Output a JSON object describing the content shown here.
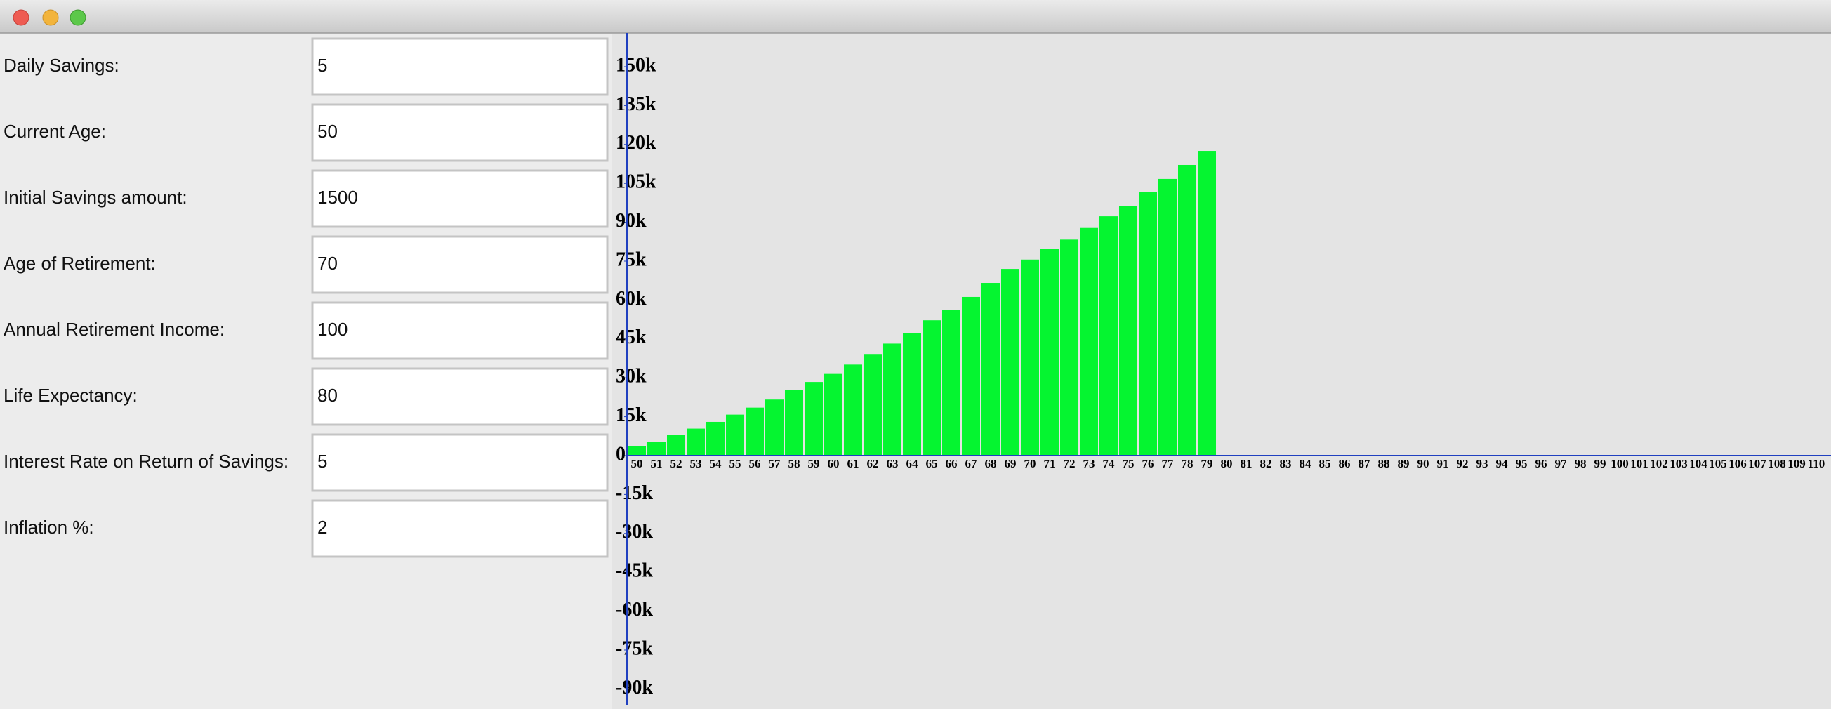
{
  "form": {
    "fields": [
      {
        "label": "Daily Savings:",
        "value": "5"
      },
      {
        "label": "Current Age:",
        "value": "50"
      },
      {
        "label": "Initial Savings amount:",
        "value": "1500"
      },
      {
        "label": "Age of Retirement:",
        "value": "70"
      },
      {
        "label": "Annual Retirement Income:",
        "value": "100"
      },
      {
        "label": "Life Expectancy:",
        "value": "80"
      },
      {
        "label": "Interest Rate on Return of Savings:",
        "value": "5"
      },
      {
        "label": "Inflation %:",
        "value": "2"
      }
    ]
  },
  "chart_data": {
    "type": "bar",
    "color": "#05f530",
    "categories": [
      "50",
      "51",
      "52",
      "53",
      "54",
      "55",
      "56",
      "57",
      "58",
      "59",
      "60",
      "61",
      "62",
      "63",
      "64",
      "65",
      "66",
      "67",
      "68",
      "69",
      "70",
      "71",
      "72",
      "73",
      "74",
      "75",
      "76",
      "77",
      "78",
      "79",
      "80",
      "81",
      "82",
      "83",
      "84",
      "85",
      "86",
      "87",
      "88",
      "89",
      "90",
      "91",
      "92",
      "93",
      "94",
      "95",
      "96",
      "97",
      "98",
      "99",
      "100",
      "101",
      "102",
      "103",
      "104",
      "105",
      "106",
      "107",
      "108",
      "109",
      "110"
    ],
    "values": [
      3600,
      5400,
      8100,
      10400,
      13000,
      15800,
      18500,
      21600,
      25200,
      28400,
      31500,
      35100,
      39200,
      43200,
      47300,
      52200,
      56300,
      61200,
      66600,
      72000,
      75600,
      79700,
      83300,
      87800,
      92300,
      96300,
      101700,
      106700,
      112100,
      117500,
      null,
      null,
      null,
      null,
      null,
      null,
      null,
      null,
      null,
      null,
      null,
      null,
      null,
      null,
      null,
      null,
      null,
      null,
      null,
      null,
      null,
      null,
      null,
      null,
      null,
      null,
      null,
      null,
      null,
      null,
      null
    ],
    "ylim": [
      -96400,
      163000
    ],
    "yticks": [
      {
        "value": 150000,
        "label": "150k"
      },
      {
        "value": 135000,
        "label": "135k"
      },
      {
        "value": 120000,
        "label": "120k"
      },
      {
        "value": 105000,
        "label": "105k"
      },
      {
        "value": 90000,
        "label": "90k"
      },
      {
        "value": 75000,
        "label": "75k"
      },
      {
        "value": 60000,
        "label": "60k"
      },
      {
        "value": 45000,
        "label": "45k"
      },
      {
        "value": 30000,
        "label": "30k"
      },
      {
        "value": 15000,
        "label": "15k"
      },
      0,
      {
        "value": -15000,
        "label": "-15k"
      },
      {
        "value": -30000,
        "label": "-30k"
      },
      {
        "value": -45000,
        "label": "-45k"
      },
      {
        "value": -60000,
        "label": "-60k"
      },
      {
        "value": -75000,
        "label": "-75k"
      },
      {
        "value": -90000,
        "label": "-90k"
      }
    ]
  }
}
